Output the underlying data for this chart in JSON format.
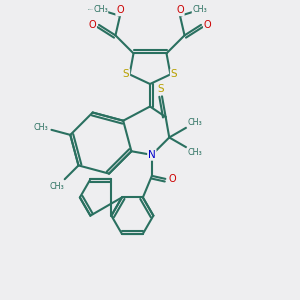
{
  "bg_color": "#eeeef0",
  "bond_color": "#2a7060",
  "n_color": "#0000cc",
  "o_color": "#cc0000",
  "s_color": "#b8a000",
  "lw": 1.5,
  "fig_width": 3.0,
  "fig_height": 3.0,
  "dpi": 100,
  "xlim": [
    0,
    10
  ],
  "ylim": [
    0,
    10
  ]
}
